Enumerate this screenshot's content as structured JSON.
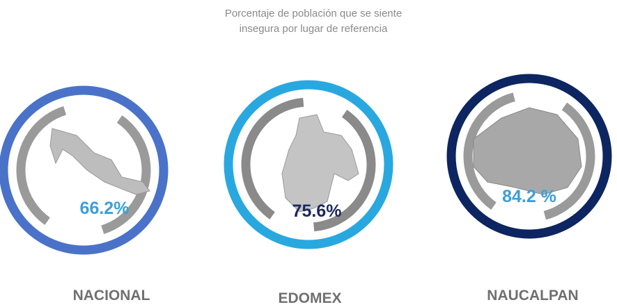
{
  "title_lines": [
    "Porcentaje de población que se siente",
    "insegura por lugar de referencia"
  ],
  "items": [
    {
      "label": "NACIONAL",
      "value": "66.2%"
    },
    {
      "label": "EDOMEX",
      "value": "75.6%"
    },
    {
      "label": "NAUCALPAN",
      "value": "84.2 %"
    }
  ]
}
